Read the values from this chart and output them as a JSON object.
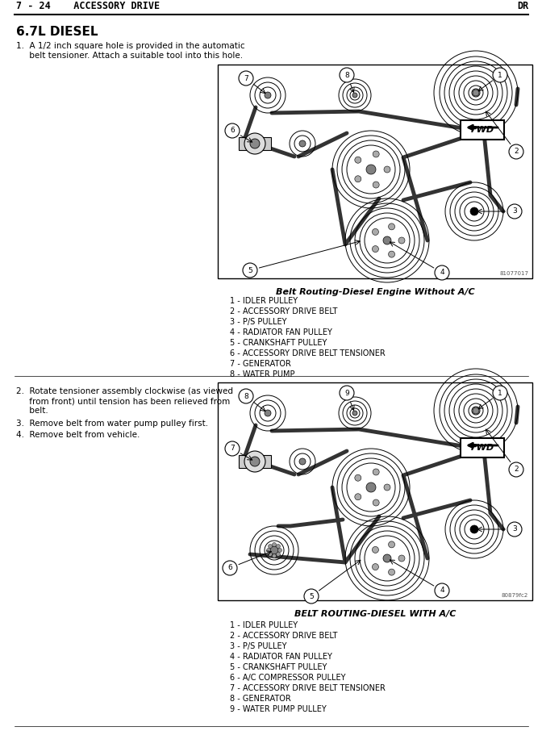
{
  "page_header": "7 - 24    ACCESSORY DRIVE",
  "page_header_right": "DR",
  "section_title": "6.7L DIESEL",
  "instr1_line1": "1.  A 1/2 inch square hole is provided in the automatic",
  "instr1_line2": "     belt tensioner. Attach a suitable tool into this hole.",
  "instr2_line1": "2.  Rotate tensioner assembly clockwise (as viewed",
  "instr2_line2": "     from front) until tension has been relieved from",
  "instr2_line3": "     belt.",
  "instr3": "3.  Remove belt from water pump pulley first.",
  "instr4": "4.  Remove belt from vehicle.",
  "diagram1_caption": "Belt Routing-Diesel Engine Without A/C",
  "diagram1_legend": [
    "1 - IDLER PULLEY",
    "2 - ACCESSORY DRIVE BELT",
    "3 - P/S PULLEY",
    "4 - RADIATOR FAN PULLEY",
    "5 - CRANKSHAFT PULLEY",
    "6 - ACCESSORY DRIVE BELT TENSIONER",
    "7 - GENERATOR",
    "8 - WATER PUMP"
  ],
  "diagram2_caption": "BELT ROUTING-DIESEL WITH A/C",
  "diagram2_legend": [
    "1 - IDLER PULLEY",
    "2 - ACCESSORY DRIVE BELT",
    "3 - P/S PULLEY",
    "4 - RADIATOR FAN PULLEY",
    "5 - CRANKSHAFT PULLEY",
    "6 - A/C COMPRESSOR PULLEY",
    "7 - ACCESSORY DRIVE BELT TENSIONER",
    "8 - GENERATOR",
    "9 - WATER PUMP PULLEY"
  ],
  "part_num1": "81077017",
  "part_num2": "80879fc2",
  "bg_color": "#ffffff",
  "text_color": "#000000"
}
